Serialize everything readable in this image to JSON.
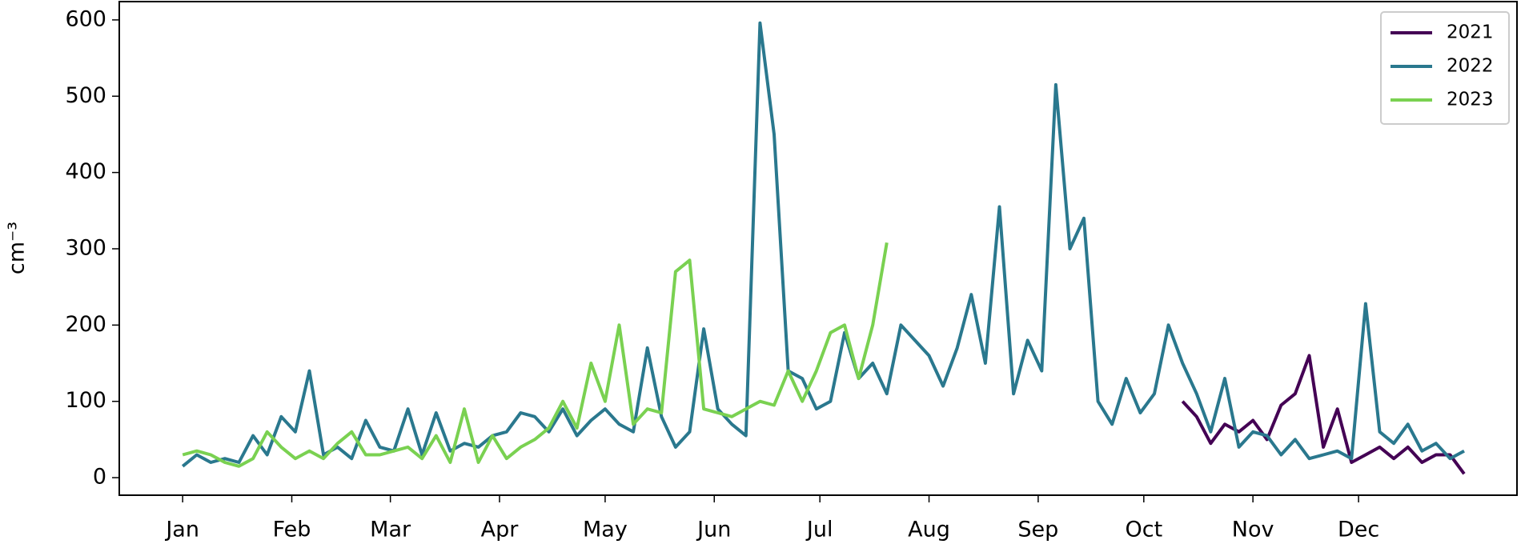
{
  "chart_data": {
    "type": "line",
    "y_label": "cm⁻³",
    "x": [
      1,
      5,
      9,
      13,
      17,
      21,
      25,
      29,
      33,
      37,
      41,
      45,
      49,
      53,
      57,
      61,
      65,
      69,
      73,
      77,
      81,
      85,
      89,
      93,
      97,
      101,
      105,
      109,
      113,
      117,
      121,
      125,
      129,
      133,
      137,
      141,
      145,
      149,
      153,
      157,
      161,
      165,
      169,
      173,
      177,
      181,
      185,
      189,
      193,
      197,
      201,
      205,
      209,
      213,
      217,
      221,
      225,
      229,
      233,
      237,
      241,
      245,
      249,
      253,
      257,
      261,
      265,
      269,
      273,
      277,
      281,
      285,
      289,
      293,
      297,
      301,
      305,
      309,
      313,
      317,
      321,
      325,
      329,
      333,
      337,
      341,
      345,
      349,
      353,
      357,
      361,
      365
    ],
    "series": [
      {
        "name": "2021",
        "color": "#440154",
        "values": [
          null,
          null,
          null,
          null,
          null,
          null,
          null,
          null,
          null,
          null,
          null,
          null,
          null,
          null,
          null,
          null,
          null,
          null,
          null,
          null,
          null,
          null,
          null,
          null,
          null,
          null,
          null,
          null,
          null,
          null,
          null,
          null,
          null,
          null,
          null,
          null,
          null,
          null,
          null,
          null,
          null,
          null,
          null,
          null,
          null,
          null,
          null,
          null,
          null,
          null,
          null,
          null,
          null,
          null,
          null,
          null,
          null,
          null,
          null,
          null,
          null,
          null,
          null,
          null,
          null,
          null,
          null,
          null,
          null,
          null,
          null,
          100,
          80,
          45,
          70,
          60,
          75,
          50,
          95,
          110,
          160,
          40,
          90,
          20,
          30,
          40,
          25,
          40,
          20,
          30,
          30,
          5
        ]
      },
      {
        "name": "2022",
        "color": "#2a788e",
        "values": [
          15,
          30,
          20,
          25,
          20,
          55,
          30,
          80,
          60,
          140,
          30,
          40,
          25,
          75,
          40,
          35,
          90,
          30,
          85,
          35,
          45,
          40,
          55,
          60,
          85,
          80,
          60,
          90,
          55,
          75,
          90,
          70,
          60,
          170,
          80,
          40,
          60,
          195,
          90,
          70,
          55,
          596,
          450,
          140,
          130,
          90,
          100,
          190,
          130,
          150,
          110,
          200,
          180,
          160,
          120,
          170,
          240,
          150,
          355,
          110,
          180,
          140,
          515,
          300,
          340,
          100,
          70,
          130,
          85,
          110,
          200,
          150,
          110,
          60,
          130,
          40,
          60,
          55,
          30,
          50,
          25,
          30,
          35,
          25,
          228,
          60,
          45,
          70,
          35,
          45,
          25,
          35
        ]
      },
      {
        "name": "2023",
        "color": "#7ad151",
        "values": [
          30,
          35,
          30,
          20,
          15,
          25,
          60,
          40,
          25,
          35,
          25,
          45,
          60,
          30,
          30,
          35,
          40,
          25,
          55,
          20,
          90,
          20,
          55,
          25,
          40,
          50,
          65,
          100,
          65,
          150,
          100,
          200,
          70,
          90,
          85,
          270,
          285,
          90,
          85,
          80,
          90,
          100,
          95,
          140,
          100,
          140,
          190,
          200,
          130,
          200,
          308,
          null,
          null,
          null,
          null,
          null,
          null,
          null,
          null,
          null,
          null,
          null,
          null,
          null,
          null,
          null,
          null,
          null,
          null,
          null,
          null,
          null,
          null,
          null,
          null,
          null,
          null,
          null,
          null,
          null,
          null,
          null,
          null,
          null,
          null,
          null,
          null,
          null,
          null,
          null,
          null,
          null
        ]
      }
    ],
    "xlim": [
      -17,
      380
    ],
    "ylim": [
      -23,
      624
    ],
    "xticks": [
      {
        "value": 1,
        "label": "Jan"
      },
      {
        "value": 32,
        "label": "Feb"
      },
      {
        "value": 60,
        "label": "Mar"
      },
      {
        "value": 91,
        "label": "Apr"
      },
      {
        "value": 121,
        "label": "May"
      },
      {
        "value": 152,
        "label": "Jun"
      },
      {
        "value": 182,
        "label": "Jul"
      },
      {
        "value": 213,
        "label": "Aug"
      },
      {
        "value": 244,
        "label": "Sep"
      },
      {
        "value": 274,
        "label": "Oct"
      },
      {
        "value": 305,
        "label": "Nov"
      },
      {
        "value": 335,
        "label": "Dec"
      }
    ],
    "yticks": [
      0,
      100,
      200,
      300,
      400,
      500,
      600
    ],
    "legend": "upper right",
    "grid": false
  }
}
